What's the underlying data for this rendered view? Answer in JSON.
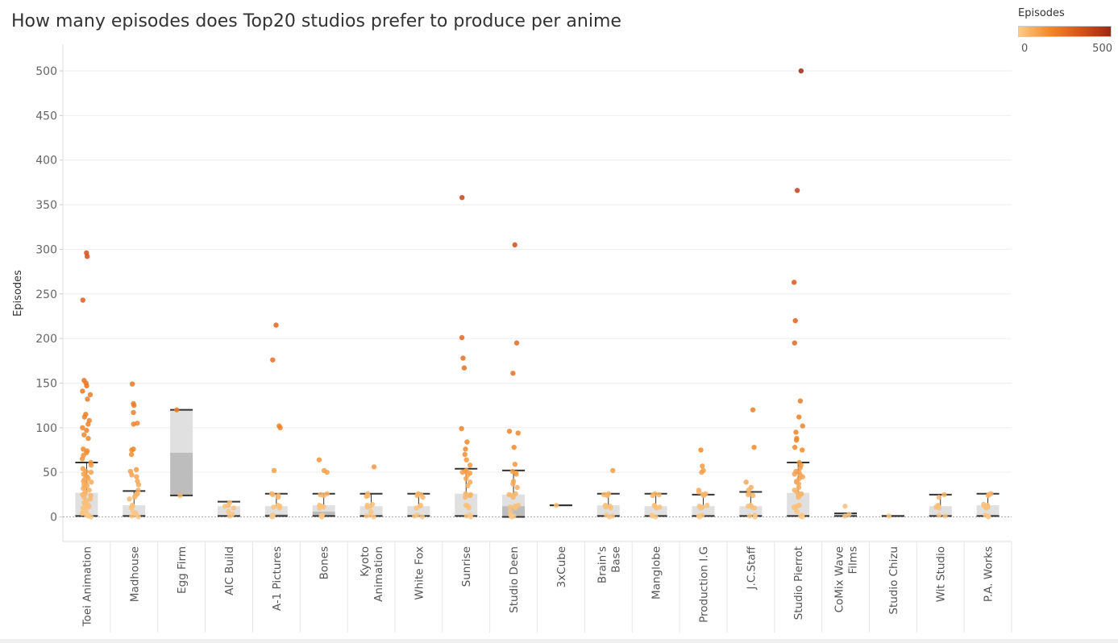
{
  "title": "How many episodes does Top20 studios prefer to produce per anime",
  "legend": {
    "title": "Episodes",
    "min_label": "0",
    "max_label": "500"
  },
  "colors": {
    "low": "#fbc987",
    "mid": "#f08a2c",
    "high": "#d9531a",
    "max": "#9b2a14",
    "box_upper": "#e0e0e0",
    "box_lower": "#bdbdbd",
    "whisker": "#333333"
  },
  "chart_data": {
    "type": "scatter",
    "subtype": "box-and-whisker with jittered points",
    "title": "How many episodes does Top20 studios prefer to produce per anime",
    "xlabel": "",
    "ylabel": "Episodes",
    "ylim": [
      -28,
      530
    ],
    "yticks": [
      0,
      50,
      100,
      150,
      200,
      250,
      300,
      350,
      400,
      450,
      500
    ],
    "grid": true,
    "legend_position": "top-right",
    "categories": [
      "Toei Animation",
      "Madhouse",
      "Egg Firm",
      "AIC Build",
      "A-1 Pictures",
      "Bones",
      "Kyoto Animation",
      "White Fox",
      "Sunrise",
      "Studio Deen",
      "3xCube",
      "Brain&#039;s Base",
      "Manglobe",
      "Production I.G",
      "J.C.Staff",
      "Studio Pierrot",
      "CoMix Wave Films",
      "Studio Chizu",
      "Wit Studio",
      "P.A. Works"
    ],
    "category_labels": [
      [
        "Toei Animation"
      ],
      [
        "Madhouse"
      ],
      [
        "Egg Firm"
      ],
      [
        "AIC Build"
      ],
      [
        "A-1 Pictures"
      ],
      [
        "Bones"
      ],
      [
        "Kyoto",
        "Animation"
      ],
      [
        "White Fox"
      ],
      [
        "Sunrise"
      ],
      [
        "Studio Deen"
      ],
      [
        "3xCube"
      ],
      [
        "Brain&#039;s",
        "Base"
      ],
      [
        "Manglobe"
      ],
      [
        "Production I.G"
      ],
      [
        "J.C.Staff"
      ],
      [
        "Studio Pierrot"
      ],
      [
        "CoMix Wave",
        "Films"
      ],
      [
        "Studio Chizu"
      ],
      [
        "Wit Studio"
      ],
      [
        "P.A. Works"
      ]
    ],
    "boxes": [
      {
        "studio": "Toei Animation",
        "lower_whisker": 1,
        "q1": 1,
        "median": 2,
        "q3": 27,
        "upper_whisker": 61
      },
      {
        "studio": "Madhouse",
        "lower_whisker": 1,
        "q1": 1,
        "median": 2,
        "q3": 13,
        "upper_whisker": 29
      },
      {
        "studio": "Egg Firm",
        "lower_whisker": 24,
        "q1": 24,
        "median": 72,
        "q3": 120,
        "upper_whisker": 120
      },
      {
        "studio": "AIC Build",
        "lower_whisker": 1,
        "q1": 1,
        "median": 2,
        "q3": 12,
        "upper_whisker": 17
      },
      {
        "studio": "A-1 Pictures",
        "lower_whisker": 1,
        "q1": 1,
        "median": 3,
        "q3": 12,
        "upper_whisker": 26
      },
      {
        "studio": "Bones",
        "lower_whisker": 1,
        "q1": 1,
        "median": 6,
        "q3": 13,
        "upper_whisker": 26
      },
      {
        "studio": "Kyoto Animation",
        "lower_whisker": 1,
        "q1": 1,
        "median": 2,
        "q3": 12,
        "upper_whisker": 26
      },
      {
        "studio": "White Fox",
        "lower_whisker": 1,
        "q1": 1,
        "median": 2,
        "q3": 12,
        "upper_whisker": 26
      },
      {
        "studio": "Sunrise",
        "lower_whisker": 1,
        "q1": 1,
        "median": 2,
        "q3": 26,
        "upper_whisker": 54
      },
      {
        "studio": "Studio Deen",
        "lower_whisker": 0,
        "q1": 0,
        "median": 12,
        "q3": 25,
        "upper_whisker": 52
      },
      {
        "studio": "3xCube",
        "lower_whisker": 13,
        "q1": 13,
        "median": 13,
        "q3": 13,
        "upper_whisker": 13
      },
      {
        "studio": "Brain&#039;s Base",
        "lower_whisker": 1,
        "q1": 1,
        "median": 2,
        "q3": 13,
        "upper_whisker": 26
      },
      {
        "studio": "Manglobe",
        "lower_whisker": 1,
        "q1": 1,
        "median": 2,
        "q3": 12,
        "upper_whisker": 26
      },
      {
        "studio": "Production I.G",
        "lower_whisker": 1,
        "q1": 1,
        "median": 2,
        "q3": 12,
        "upper_whisker": 25
      },
      {
        "studio": "J.C.Staff",
        "lower_whisker": 1,
        "q1": 1,
        "median": 2,
        "q3": 12,
        "upper_whisker": 28
      },
      {
        "studio": "Studio Pierrot",
        "lower_whisker": 1,
        "q1": 1,
        "median": 2,
        "q3": 27,
        "upper_whisker": 61
      },
      {
        "studio": "CoMix Wave Films",
        "lower_whisker": 1,
        "q1": 1,
        "median": 1,
        "q3": 4,
        "upper_whisker": 4
      },
      {
        "studio": "Studio Chizu",
        "lower_whisker": 1,
        "q1": 1,
        "median": 1,
        "q3": 1,
        "upper_whisker": 1
      },
      {
        "studio": "Wit Studio",
        "lower_whisker": 1,
        "q1": 1,
        "median": 2,
        "q3": 12,
        "upper_whisker": 25
      },
      {
        "studio": "P.A. Works",
        "lower_whisker": 1,
        "q1": 1,
        "median": 2,
        "q3": 13,
        "upper_whisker": 26
      }
    ],
    "points": [
      {
        "studio": "Toei Animation",
        "episodes": [
          296,
          292,
          243,
          153,
          150,
          147,
          141,
          137,
          132,
          115,
          112,
          108,
          104,
          100,
          97,
          92,
          88,
          76,
          74,
          72,
          69,
          65,
          61,
          58,
          54,
          51,
          50,
          48,
          46,
          45,
          43,
          42,
          40,
          39,
          38,
          36,
          35,
          33,
          32,
          30,
          28,
          26,
          25,
          24,
          22,
          20,
          18,
          16,
          14,
          13,
          12,
          11,
          10,
          8,
          6,
          5,
          4,
          3,
          2,
          1,
          0
        ]
      },
      {
        "studio": "Madhouse",
        "episodes": [
          149,
          127,
          125,
          117,
          105,
          104,
          76,
          75,
          70,
          53,
          51,
          47,
          45,
          40,
          36,
          30,
          26,
          25,
          24,
          22,
          20,
          13,
          12,
          10,
          6,
          4,
          2,
          1,
          0
        ]
      },
      {
        "studio": "Egg Firm",
        "episodes": [
          120,
          24
        ]
      },
      {
        "studio": "AIC Build",
        "episodes": [
          16,
          13,
          12,
          10,
          6,
          3,
          1
        ]
      },
      {
        "studio": "A-1 Pictures",
        "episodes": [
          215,
          176,
          102,
          100,
          52,
          26,
          25,
          24,
          22,
          13,
          12,
          11,
          10,
          2,
          1,
          0
        ]
      },
      {
        "studio": "Bones",
        "episodes": [
          64,
          52,
          50,
          26,
          25,
          24,
          13,
          12,
          11,
          10,
          2,
          1,
          0
        ]
      },
      {
        "studio": "Kyoto Animation",
        "episodes": [
          56,
          26,
          24,
          23,
          14,
          13,
          12,
          11,
          6,
          2,
          1,
          0
        ]
      },
      {
        "studio": "White Fox",
        "episodes": [
          26,
          25,
          24,
          22,
          13,
          12,
          10,
          2,
          1,
          0
        ]
      },
      {
        "studio": "Sunrise",
        "episodes": [
          358,
          201,
          178,
          167,
          99,
          84,
          76,
          70,
          64,
          58,
          52,
          51,
          50,
          49,
          47,
          43,
          39,
          35,
          26,
          25,
          24,
          22,
          13,
          12,
          10,
          2,
          1,
          0
        ]
      },
      {
        "studio": "Studio Deen",
        "episodes": [
          305,
          195,
          161,
          96,
          94,
          78,
          59,
          51,
          49,
          48,
          40,
          37,
          33,
          26,
          25,
          24,
          22,
          13,
          12,
          11,
          10,
          6,
          2,
          1,
          0
        ]
      },
      {
        "studio": "3xCube",
        "episodes": [
          13
        ]
      },
      {
        "studio": "Brain&#039;s Base",
        "episodes": [
          52,
          26,
          25,
          24,
          13,
          12,
          11,
          10,
          2,
          1,
          0
        ]
      },
      {
        "studio": "Manglobe",
        "episodes": [
          26,
          25,
          24,
          13,
          12,
          11,
          10,
          2,
          1,
          0
        ]
      },
      {
        "studio": "Production I.G",
        "episodes": [
          75,
          57,
          52,
          50,
          30,
          28,
          26,
          25,
          24,
          13,
          12,
          11,
          10,
          2,
          1,
          0
        ]
      },
      {
        "studio": "J.C.Staff",
        "episodes": [
          120,
          78,
          39,
          33,
          30,
          26,
          25,
          24,
          13,
          12,
          11,
          10,
          2,
          1,
          0
        ]
      },
      {
        "studio": "Studio Pierrot",
        "episodes": [
          500,
          366,
          263,
          220,
          195,
          130,
          112,
          102,
          95,
          88,
          86,
          78,
          75,
          61,
          58,
          55,
          51,
          50,
          48,
          47,
          45,
          43,
          40,
          39,
          37,
          33,
          30,
          28,
          26,
          25,
          24,
          22,
          13,
          12,
          11,
          10,
          6,
          2,
          1,
          0
        ]
      },
      {
        "studio": "CoMix Wave Films",
        "episodes": [
          12,
          3,
          1
        ]
      },
      {
        "studio": "Studio Chizu",
        "episodes": [
          1
        ]
      },
      {
        "studio": "Wit Studio",
        "episodes": [
          25,
          22,
          13,
          12,
          11,
          10,
          2,
          1
        ]
      },
      {
        "studio": "P.A. Works",
        "episodes": [
          26,
          25,
          24,
          14,
          13,
          12,
          11,
          10,
          2,
          1,
          0
        ]
      }
    ]
  }
}
